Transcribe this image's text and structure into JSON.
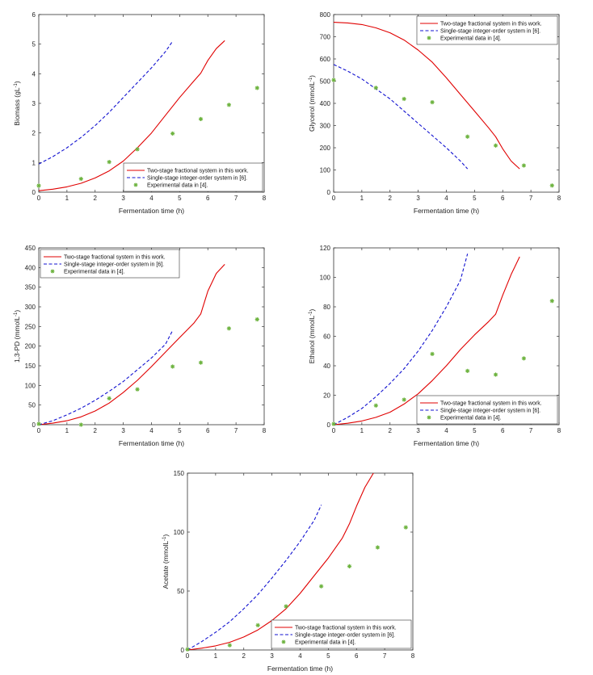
{
  "figure": {
    "legend_labels": {
      "frac": "Two-stage fractional system in this work.",
      "int": "Single-stage integer-order system in [6].",
      "exp": "Experimental data in [4]."
    },
    "colors": {
      "frac": "#e00000",
      "int": "#1010d0",
      "exp": "#6db33f"
    }
  },
  "chart_data": [
    {
      "type": "line",
      "title": "",
      "xlabel": "Fermentation time (h)",
      "ylabel": "Biomass (gL-1)",
      "ylabel_main": "Biomass (gL",
      "ylabel_sup": "-1",
      "ylabel_tail": ")",
      "xlim": [
        0,
        8
      ],
      "ylim": [
        0,
        6
      ],
      "xticks": [
        "0",
        "1",
        "2",
        "3",
        "4",
        "5",
        "6",
        "7",
        "8"
      ],
      "yticks": [
        "0",
        "1",
        "2",
        "3",
        "4",
        "5",
        "6"
      ],
      "legend_position": "bottom-right",
      "series": [
        {
          "name": "Two-stage fractional system in this work.",
          "style": "solid",
          "x": [
            0,
            0.5,
            1,
            1.5,
            2,
            2.5,
            3,
            3.5,
            4,
            4.5,
            5,
            5.5,
            5.75,
            6,
            6.3,
            6.6
          ],
          "y": [
            0.05,
            0.1,
            0.18,
            0.3,
            0.48,
            0.72,
            1.05,
            1.5,
            2.0,
            2.6,
            3.2,
            3.75,
            4.02,
            4.45,
            4.85,
            5.12
          ]
        },
        {
          "name": "Single-stage integer-order system in [6].",
          "style": "dashed",
          "x": [
            0,
            0.5,
            1,
            1.5,
            2,
            2.5,
            3,
            3.5,
            4,
            4.5,
            4.75
          ],
          "y": [
            0.95,
            1.2,
            1.5,
            1.85,
            2.25,
            2.7,
            3.2,
            3.7,
            4.2,
            4.75,
            5.1
          ]
        },
        {
          "name": "Experimental data in [4].",
          "style": "marker",
          "x": [
            0,
            1.5,
            2.5,
            3.5,
            4.75,
            5.75,
            6.75,
            7.75
          ],
          "y": [
            0.22,
            0.45,
            1.02,
            1.45,
            1.98,
            2.47,
            2.95,
            3.52
          ]
        }
      ]
    },
    {
      "type": "line",
      "title": "",
      "xlabel": "Fermentation time (h)",
      "ylabel": "Glycerol (mmolL-1)",
      "ylabel_main": "Glycerol (mmolL",
      "ylabel_sup": "-1",
      "ylabel_tail": ")",
      "xlim": [
        0,
        8
      ],
      "ylim": [
        0,
        800
      ],
      "xticks": [
        "0",
        "1",
        "2",
        "3",
        "4",
        "5",
        "6",
        "7",
        "8"
      ],
      "yticks": [
        "0",
        "100",
        "200",
        "300",
        "400",
        "500",
        "600",
        "700",
        "800"
      ],
      "legend_position": "top-right",
      "series": [
        {
          "name": "Two-stage fractional system in this work.",
          "style": "solid",
          "x": [
            0,
            0.5,
            1,
            1.5,
            2,
            2.5,
            3,
            3.5,
            4,
            4.5,
            5,
            5.5,
            5.75,
            6,
            6.3,
            6.6
          ],
          "y": [
            765,
            762,
            755,
            740,
            718,
            685,
            640,
            585,
            515,
            440,
            365,
            290,
            250,
            195,
            140,
            105
          ]
        },
        {
          "name": "Single-stage integer-order system in [6].",
          "style": "dashed",
          "x": [
            0,
            0.5,
            1,
            1.5,
            2,
            2.5,
            3,
            3.5,
            4,
            4.5,
            4.75
          ],
          "y": [
            575,
            545,
            510,
            465,
            420,
            365,
            310,
            255,
            200,
            140,
            105
          ]
        },
        {
          "name": "Experimental data in [4].",
          "style": "marker",
          "x": [
            0,
            1.5,
            2.5,
            3.5,
            4.75,
            5.75,
            6.75,
            7.75
          ],
          "y": [
            505,
            470,
            420,
            405,
            250,
            210,
            120,
            30
          ]
        }
      ]
    },
    {
      "type": "line",
      "title": "",
      "xlabel": "Fermentation time (h)",
      "ylabel": "1,3-PD (mmolL-1)",
      "ylabel_main": "1,3-PD (mmolL",
      "ylabel_sup": "-1",
      "ylabel_tail": ")",
      "xlim": [
        0,
        8
      ],
      "ylim": [
        0,
        450
      ],
      "xticks": [
        "0",
        "1",
        "2",
        "3",
        "4",
        "5",
        "6",
        "7",
        "8"
      ],
      "yticks": [
        "0",
        "50",
        "100",
        "150",
        "200",
        "250",
        "300",
        "350",
        "400",
        "450"
      ],
      "legend_position": "top-left",
      "series": [
        {
          "name": "Two-stage fractional system in this work.",
          "style": "solid",
          "x": [
            0,
            0.5,
            1,
            1.5,
            2,
            2.5,
            3,
            3.5,
            4,
            4.5,
            5,
            5.5,
            5.75,
            6,
            6.3,
            6.6
          ],
          "y": [
            0,
            4,
            10,
            20,
            35,
            55,
            82,
            113,
            148,
            185,
            222,
            258,
            282,
            340,
            385,
            408
          ]
        },
        {
          "name": "Single-stage integer-order system in [6].",
          "style": "dashed",
          "x": [
            0,
            0.5,
            1,
            1.5,
            2,
            2.5,
            3,
            3.5,
            4,
            4.5,
            4.75
          ],
          "y": [
            0,
            10,
            25,
            42,
            62,
            85,
            110,
            140,
            170,
            205,
            240
          ]
        },
        {
          "name": "Experimental data in [4].",
          "style": "marker",
          "x": [
            0,
            1.5,
            2.5,
            3.5,
            4.75,
            5.75,
            6.75,
            7.75
          ],
          "y": [
            2,
            0,
            67,
            90,
            148,
            158,
            245,
            268
          ]
        }
      ]
    },
    {
      "type": "line",
      "title": "",
      "xlabel": "Fermentation time (h)",
      "ylabel": "Ethanol (mmolL-1)",
      "ylabel_main": "Ethanol (mmolL",
      "ylabel_sup": "-1",
      "ylabel_tail": ")",
      "xlim": [
        0,
        8
      ],
      "ylim": [
        0,
        120
      ],
      "xticks": [
        "0",
        "1",
        "2",
        "3",
        "4",
        "5",
        "6",
        "7",
        "8"
      ],
      "yticks": [
        "0",
        "20",
        "40",
        "60",
        "80",
        "100",
        "120"
      ],
      "legend_position": "bottom-right",
      "series": [
        {
          "name": "Two-stage fractional system in this work.",
          "style": "solid",
          "x": [
            0,
            0.5,
            1,
            1.5,
            2,
            2.5,
            3,
            3.5,
            4,
            4.5,
            5,
            5.5,
            5.75,
            6,
            6.3,
            6.6
          ],
          "y": [
            0,
            1,
            2.5,
            5,
            8.5,
            14,
            21,
            30,
            40,
            51,
            61,
            70,
            75,
            88,
            102,
            114
          ]
        },
        {
          "name": "Single-stage integer-order system in [6].",
          "style": "dashed",
          "x": [
            0,
            0.5,
            1,
            1.5,
            2,
            2.5,
            3,
            3.5,
            4,
            4.5,
            4.75
          ],
          "y": [
            0,
            5,
            11,
            19,
            28,
            38,
            50,
            64,
            80,
            98,
            116
          ]
        },
        {
          "name": "Experimental data in [4].",
          "style": "marker",
          "x": [
            0,
            1.5,
            2.5,
            3.5,
            4.75,
            5.75,
            6.75,
            7.75
          ],
          "y": [
            0.5,
            13,
            17,
            48,
            36.5,
            34,
            45,
            84
          ]
        }
      ]
    },
    {
      "type": "line",
      "title": "",
      "xlabel": "Fermentation time (h)",
      "ylabel": "Acetate (mmolL-1)",
      "ylabel_main": "Acetate (mmolL",
      "ylabel_sup": "-1",
      "ylabel_tail": ")",
      "xlim": [
        0,
        8
      ],
      "ylim": [
        0,
        150
      ],
      "xticks": [
        "0",
        "1",
        "2",
        "3",
        "4",
        "5",
        "6",
        "7",
        "8"
      ],
      "yticks": [
        "0",
        "50",
        "100",
        "150"
      ],
      "legend_position": "bottom-right",
      "series": [
        {
          "name": "Two-stage fractional system in this work.",
          "style": "solid",
          "x": [
            0,
            0.5,
            1,
            1.5,
            2,
            2.5,
            3,
            3.5,
            4,
            4.5,
            5,
            5.5,
            5.75,
            6,
            6.3,
            6.6
          ],
          "y": [
            0,
            1.5,
            3.5,
            6.5,
            11,
            17,
            25,
            35,
            48,
            63,
            78,
            95,
            107,
            122,
            138,
            150
          ]
        },
        {
          "name": "Single-stage integer-order system in [6].",
          "style": "dashed",
          "x": [
            0,
            0.5,
            1,
            1.5,
            2,
            2.5,
            3,
            3.5,
            4,
            4.5,
            4.75
          ],
          "y": [
            0,
            7,
            15,
            24,
            35,
            47,
            61,
            76,
            92,
            110,
            123
          ]
        },
        {
          "name": "Experimental data in [4].",
          "style": "marker",
          "x": [
            0,
            1.5,
            2.5,
            3.5,
            4.75,
            5.75,
            6.75,
            7.75
          ],
          "y": [
            0.5,
            4,
            21,
            37,
            54,
            71,
            87,
            104
          ]
        }
      ]
    }
  ]
}
